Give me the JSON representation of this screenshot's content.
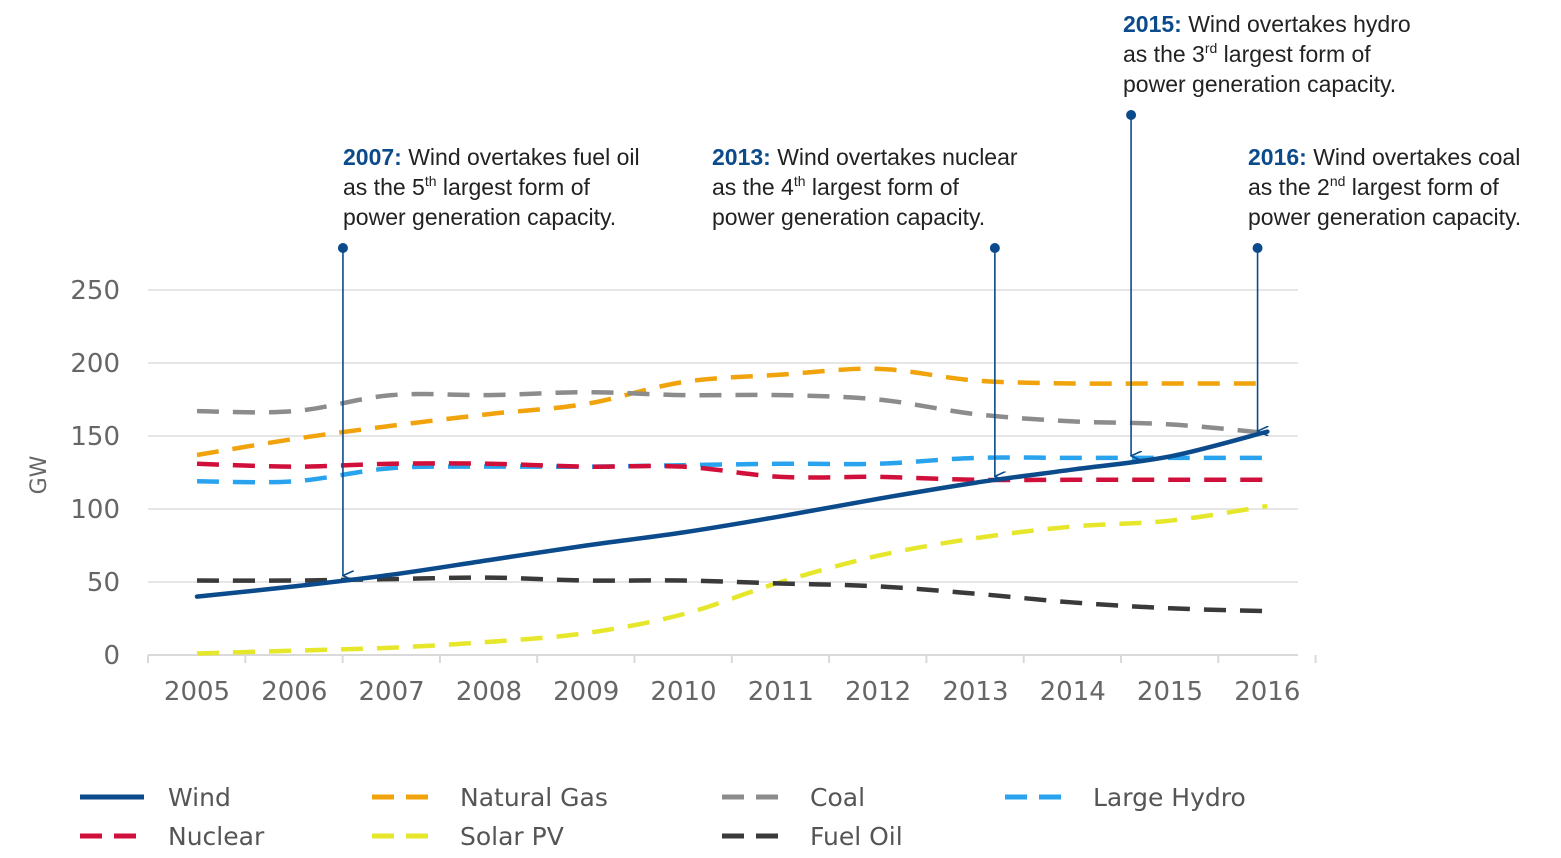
{
  "chart_data": {
    "type": "line",
    "title": "",
    "xlabel": "",
    "ylabel": "GW",
    "ylim": [
      0,
      250
    ],
    "yticks": [
      0,
      50,
      100,
      150,
      200,
      250
    ],
    "grid": true,
    "legend_position": "bottom",
    "categories": [
      "2005",
      "2006",
      "2007",
      "2008",
      "2009",
      "2010",
      "2011",
      "2012",
      "2013",
      "2014",
      "2015",
      "2016"
    ],
    "series": [
      {
        "name": "Wind",
        "color": "#0b4a8b",
        "style": "solid",
        "values": [
          40,
          47,
          55,
          65,
          75,
          84,
          95,
          107,
          118,
          127,
          136,
          153
        ]
      },
      {
        "name": "Natural Gas",
        "color": "#f0a30a",
        "style": "dashed",
        "values": [
          137,
          148,
          157,
          165,
          172,
          187,
          192,
          196,
          188,
          186,
          186,
          186
        ]
      },
      {
        "name": "Coal",
        "color": "#8c8c8c",
        "style": "dashed",
        "values": [
          167,
          167,
          178,
          178,
          180,
          178,
          178,
          175,
          165,
          160,
          158,
          152
        ]
      },
      {
        "name": "Large Hydro",
        "color": "#2aa3ef",
        "style": "dashed",
        "values": [
          119,
          119,
          128,
          129,
          129,
          130,
          131,
          131,
          135,
          135,
          135,
          135
        ]
      },
      {
        "name": "Nuclear",
        "color": "#d0103a",
        "style": "dashed",
        "values": [
          131,
          129,
          131,
          131,
          129,
          129,
          122,
          122,
          120,
          120,
          120,
          120
        ]
      },
      {
        "name": "Solar PV",
        "color": "#e6e62a",
        "style": "dashed",
        "values": [
          1,
          3,
          5,
          9,
          15,
          28,
          50,
          68,
          80,
          88,
          92,
          102
        ]
      },
      {
        "name": "Fuel Oil",
        "color": "#3a3a3a",
        "style": "dashed",
        "values": [
          51,
          51,
          52,
          53,
          51,
          51,
          49,
          47,
          42,
          36,
          32,
          30
        ]
      }
    ],
    "annotations": [
      {
        "year_label": "2007:",
        "line1": " Wind overtakes fuel oil",
        "line2_pre": "as the 5",
        "sup": "th",
        "line2_post": " largest form of",
        "line3": "power generation capacity.",
        "target_x": "2006.5",
        "target_y": 53
      },
      {
        "year_label": "2013:",
        "line1": " Wind overtakes nuclear",
        "line2_pre": "as the 4",
        "sup": "th",
        "line2_post": " largest form of",
        "line3": "power generation capacity.",
        "target_x": "2013.2",
        "target_y": 121
      },
      {
        "year_label": "2015:",
        "line1": " Wind overtakes hydro",
        "line2_pre": "as the 3",
        "sup": "rd",
        "line2_post": " largest form of",
        "line3": "power generation capacity.",
        "target_x": "2014.6",
        "target_y": 135
      },
      {
        "year_label": "2016:",
        "line1": " Wind overtakes coal",
        "line2_pre": "as the 2",
        "sup": "nd",
        "line2_post": " largest form of",
        "line3": "power generation capacity.",
        "target_x": "2015.9",
        "target_y": 152
      }
    ]
  }
}
